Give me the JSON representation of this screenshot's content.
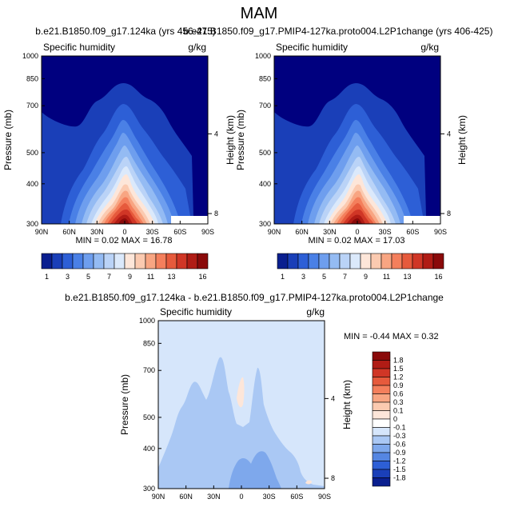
{
  "page_title": "MAM",
  "chart_data": [
    {
      "type": "contour",
      "title": "b.e21.B1850.f09_g17.124ka (yrs 456-475)",
      "left_label": "Specific humidity",
      "right_label": "g/kg",
      "xlabel": "",
      "ylabel": "Pressure (mb)",
      "ylabel_right": "Height (km)",
      "x_ticks": [
        "90N",
        "60N",
        "30N",
        "0",
        "30S",
        "60S",
        "90S"
      ],
      "y_ticks": [
        "300",
        "400",
        "500",
        "700",
        "850",
        "1000"
      ],
      "y_ticks_right": [
        "8",
        "4"
      ],
      "xlim": [
        90,
        -90
      ],
      "ylim": [
        1000,
        300
      ],
      "stats_text": "MIN =  0.02  MAX = 16.78",
      "min": 0.02,
      "max": 16.78
    },
    {
      "type": "contour",
      "title": "b.e21.B1850.f09_g17.PMIP4-127ka.proto004.L2P1change (yrs 406-425)",
      "left_label": "Specific humidity",
      "right_label": "g/kg",
      "xlabel": "",
      "ylabel": "Pressure (mb)",
      "ylabel_right": "Height (km)",
      "x_ticks": [
        "90N",
        "60N",
        "30N",
        "0",
        "30S",
        "60S",
        "90S"
      ],
      "y_ticks": [
        "300",
        "400",
        "500",
        "700",
        "850",
        "1000"
      ],
      "y_ticks_right": [
        "8",
        "4"
      ],
      "xlim": [
        90,
        -90
      ],
      "ylim": [
        1000,
        300
      ],
      "stats_text": "MIN =  0.02  MAX = 17.03",
      "min": 0.02,
      "max": 17.03
    },
    {
      "type": "contour",
      "title": "b.e21.B1850.f09_g17.124ka - b.e21.B1850.f09_g17.PMIP4-127ka.proto004.L2P1change",
      "left_label": "Specific humidity",
      "right_label": "g/kg",
      "xlabel": "",
      "ylabel": "Pressure (mb)",
      "ylabel_right": "Height (km)",
      "x_ticks": [
        "90N",
        "60N",
        "30N",
        "0",
        "30S",
        "60S",
        "90S"
      ],
      "y_ticks": [
        "300",
        "400",
        "500",
        "700",
        "850",
        "1000"
      ],
      "y_ticks_right": [
        "8",
        "4"
      ],
      "xlim": [
        90,
        -90
      ],
      "ylim": [
        1000,
        300
      ],
      "stats_text": "MIN = -0.44  MAX =  0.32",
      "min": -0.44,
      "max": 0.32
    }
  ],
  "colorbar_top": {
    "orientation": "horizontal",
    "labels": [
      "1",
      "3",
      "5",
      "7",
      "9",
      "11",
      "13",
      "16"
    ],
    "colors": [
      "#0a1f8f",
      "#1a3fb8",
      "#2d5fd6",
      "#4a80e6",
      "#6e9eee",
      "#94bbf3",
      "#bad3f7",
      "#dbe9fb",
      "#fde6d9",
      "#fbcab0",
      "#f8a582",
      "#f47f5c",
      "#e65a3c",
      "#d03626",
      "#b01c15",
      "#8a0a0a"
    ]
  },
  "colorbar_diff": {
    "orientation": "vertical",
    "labels": [
      "1.8",
      "1.5",
      "1.2",
      "0.9",
      "0.6",
      "0.3",
      "0.1",
      "0",
      "-0.1",
      "-0.3",
      "-0.6",
      "-0.9",
      "-1.2",
      "-1.5",
      "-1.8"
    ],
    "colors": [
      "#8a0a0a",
      "#b01c15",
      "#d03626",
      "#e65a3c",
      "#f47f5c",
      "#f8a582",
      "#fbcab0",
      "#fde6d9",
      "#ffffff",
      "#d6e6fb",
      "#aac8f4",
      "#7ea8ec",
      "#5586e2",
      "#2d5fd6",
      "#1a3fb8",
      "#0a1f8f"
    ]
  },
  "colors": {
    "background": "#ffffff",
    "darkest_blue": "#00007f",
    "diff_fill": "#d6e6fb"
  }
}
